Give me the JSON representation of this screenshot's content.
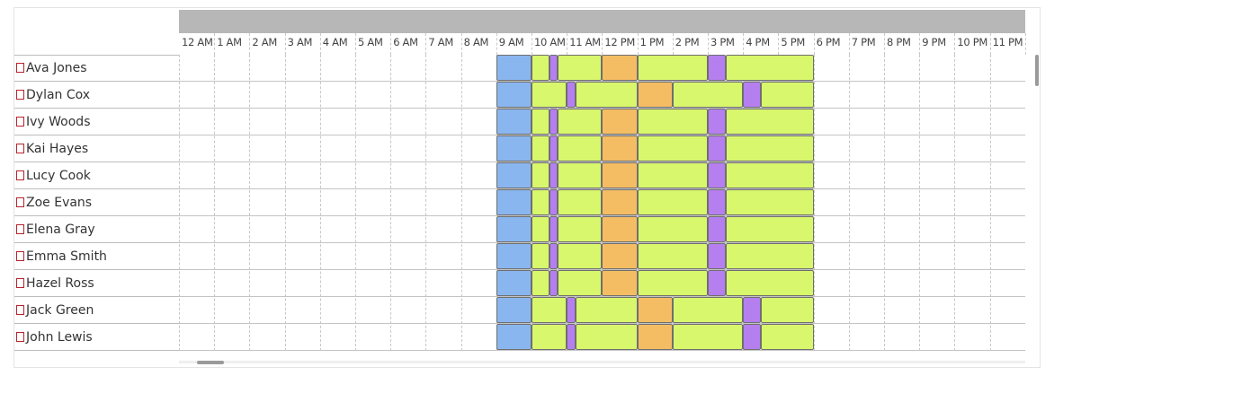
{
  "hours": [
    "12 AM",
    "1 AM",
    "2 AM",
    "3 AM",
    "4 AM",
    "5 AM",
    "6 AM",
    "7 AM",
    "8 AM",
    "9 AM",
    "10 AM",
    "11 AM",
    "12 PM",
    "1 PM",
    "2 PM",
    "3 PM",
    "4 PM",
    "5 PM",
    "6 PM",
    "7 PM",
    "8 PM",
    "9 PM",
    "10 PM",
    "11 PM"
  ],
  "colors": {
    "blue": "#8ab6f0",
    "green": "#d8f76c",
    "purple": "#b57ff0",
    "orange": "#f4bd63"
  },
  "pattern_a": [
    {
      "start": 9.0,
      "end": 10.0,
      "color": "blue"
    },
    {
      "start": 10.0,
      "end": 10.5,
      "color": "green"
    },
    {
      "start": 10.5,
      "end": 10.75,
      "color": "purple"
    },
    {
      "start": 10.75,
      "end": 12.0,
      "color": "green"
    },
    {
      "start": 12.0,
      "end": 13.0,
      "color": "orange"
    },
    {
      "start": 13.0,
      "end": 15.0,
      "color": "green"
    },
    {
      "start": 15.0,
      "end": 15.5,
      "color": "purple"
    },
    {
      "start": 15.5,
      "end": 18.0,
      "color": "green"
    }
  ],
  "pattern_b": [
    {
      "start": 9.0,
      "end": 10.0,
      "color": "blue"
    },
    {
      "start": 10.0,
      "end": 11.0,
      "color": "green"
    },
    {
      "start": 11.0,
      "end": 11.25,
      "color": "purple"
    },
    {
      "start": 11.25,
      "end": 13.0,
      "color": "green"
    },
    {
      "start": 13.0,
      "end": 14.0,
      "color": "orange"
    },
    {
      "start": 14.0,
      "end": 16.0,
      "color": "green"
    },
    {
      "start": 16.0,
      "end": 16.5,
      "color": "purple"
    },
    {
      "start": 16.5,
      "end": 18.0,
      "color": "green"
    }
  ],
  "rows": [
    {
      "name": "Ava Jones",
      "pattern": "pattern_a"
    },
    {
      "name": "Dylan Cox",
      "pattern": "pattern_b"
    },
    {
      "name": "Ivy Woods",
      "pattern": "pattern_a"
    },
    {
      "name": "Kai Hayes",
      "pattern": "pattern_a"
    },
    {
      "name": "Lucy Cook",
      "pattern": "pattern_a"
    },
    {
      "name": "Zoe Evans",
      "pattern": "pattern_a"
    },
    {
      "name": "Elena Gray",
      "pattern": "pattern_a"
    },
    {
      "name": "Emma Smith",
      "pattern": "pattern_a"
    },
    {
      "name": "Hazel Ross",
      "pattern": "pattern_a"
    },
    {
      "name": "Jack Green",
      "pattern": "pattern_b"
    },
    {
      "name": "John Lewis",
      "pattern": "pattern_b"
    }
  ]
}
